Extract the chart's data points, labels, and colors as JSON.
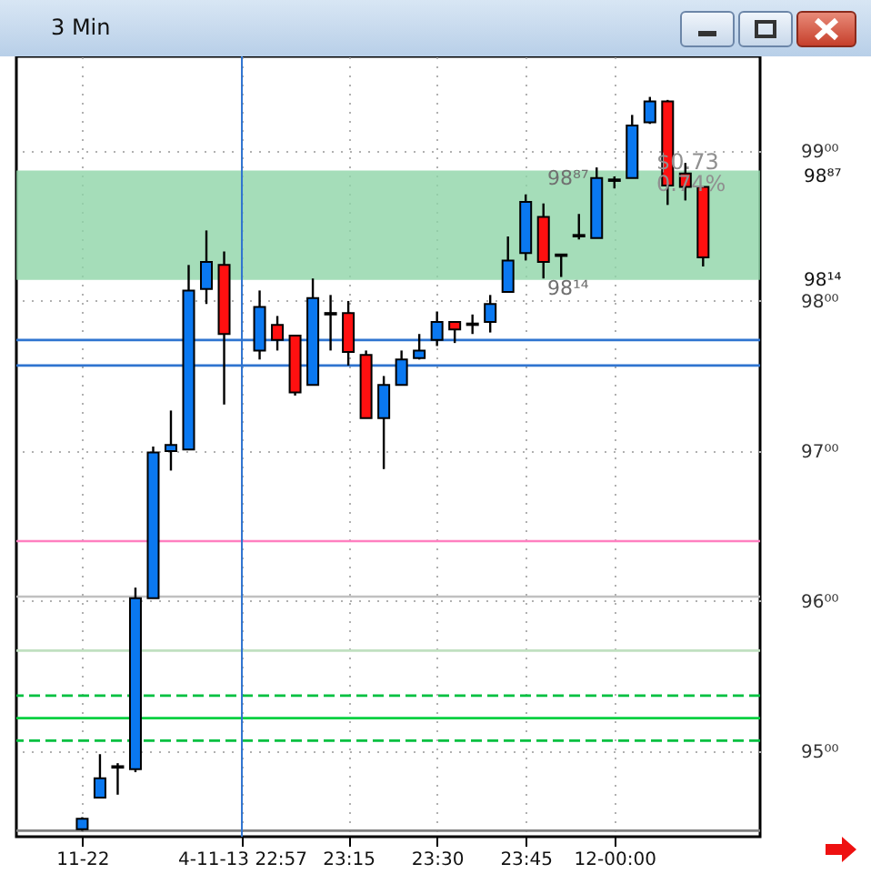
{
  "chart_data": {
    "type": "candlestick",
    "title": "3 Min",
    "categories": [
      "11-22",
      null,
      null,
      null,
      null,
      null,
      null,
      null,
      null,
      "4-11-13 22:57",
      null,
      null,
      null,
      null,
      null,
      "23:15",
      null,
      null,
      null,
      null,
      "23:30",
      null,
      null,
      null,
      null,
      "23:45",
      null,
      null,
      null,
      null,
      "12-00:00",
      null,
      null,
      null,
      null,
      null
    ],
    "ohlc": [
      [
        94.48,
        94.56,
        94.47,
        94.55
      ],
      [
        94.69,
        94.98,
        94.69,
        94.82
      ],
      [
        94.9,
        94.92,
        94.71,
        94.89
      ],
      [
        94.88,
        96.09,
        94.86,
        96.02
      ],
      [
        96.02,
        97.03,
        96.02,
        96.99
      ],
      [
        97.0,
        97.27,
        96.87,
        97.04
      ],
      [
        97.01,
        98.24,
        97.01,
        98.07
      ],
      [
        98.08,
        98.47,
        97.98,
        98.26
      ],
      [
        98.24,
        98.33,
        97.31,
        97.78
      ],
      null,
      [
        97.67,
        98.07,
        97.61,
        97.96
      ],
      [
        97.84,
        97.9,
        97.67,
        97.74
      ],
      [
        97.77,
        97.77,
        97.37,
        97.39
      ],
      [
        97.44,
        98.15,
        97.44,
        98.02
      ],
      [
        97.91,
        98.04,
        97.67,
        97.92
      ],
      [
        97.92,
        98.0,
        97.57,
        97.66
      ],
      [
        97.64,
        97.67,
        97.22,
        97.22
      ],
      [
        97.22,
        97.5,
        96.88,
        97.44
      ],
      [
        97.44,
        97.67,
        97.44,
        97.61
      ],
      [
        97.62,
        97.78,
        97.61,
        97.67
      ],
      [
        97.74,
        97.93,
        97.7,
        97.86
      ],
      [
        97.86,
        97.86,
        97.72,
        97.81
      ],
      [
        97.85,
        97.91,
        97.78,
        97.84
      ],
      [
        97.86,
        98.04,
        97.79,
        97.98
      ],
      [
        98.06,
        98.43,
        98.06,
        98.27
      ],
      [
        98.32,
        98.71,
        98.27,
        98.66
      ],
      [
        98.56,
        98.65,
        98.15,
        98.26
      ],
      [
        98.3,
        98.31,
        98.16,
        98.31
      ],
      [
        98.43,
        98.58,
        98.41,
        98.44
      ],
      [
        98.42,
        98.89,
        98.42,
        98.82
      ],
      [
        98.8,
        98.83,
        98.75,
        98.81
      ],
      [
        98.82,
        99.24,
        98.82,
        99.17
      ],
      [
        99.19,
        99.36,
        99.18,
        99.33
      ],
      [
        99.33,
        99.34,
        98.64,
        98.77
      ],
      [
        98.85,
        98.92,
        98.67,
        98.76
      ],
      [
        98.76,
        98.76,
        98.23,
        98.29
      ]
    ],
    "ylim": [
      94.43,
      99.63
    ],
    "yticks": [
      {
        "value": 95,
        "label": "95⁰⁰"
      },
      {
        "value": 96,
        "label": "96⁰⁰"
      },
      {
        "value": 97,
        "label": "97⁰⁰"
      },
      {
        "value": 98,
        "label": "98⁰⁰"
      },
      {
        "value": 99,
        "label": "99⁰⁰"
      }
    ],
    "grid": true,
    "ref_lines": [
      {
        "axis": "y",
        "value": 97.57,
        "color": "#2f74d0"
      },
      {
        "axis": "y",
        "value": 97.74,
        "color": "#2f74d0"
      },
      {
        "axis": "x",
        "value": "4-11-13 22:57",
        "color": "#2f74d0"
      },
      {
        "axis": "y",
        "value": 96.4,
        "color": "#ff80c0"
      },
      {
        "axis": "y",
        "value": 96.03,
        "color": "#c0c0c0"
      },
      {
        "axis": "y",
        "value": 95.67,
        "color": "#c0e0c0"
      },
      {
        "axis": "y",
        "value": 95.37,
        "color": "#00c040",
        "line_style": "dashed"
      },
      {
        "axis": "y",
        "value": 95.22,
        "color": "#00d040"
      },
      {
        "axis": "y",
        "value": 95.07,
        "color": "#00c040",
        "line_style": "dashed"
      },
      {
        "axis": "y",
        "value": 94.47,
        "color": "#808080"
      }
    ],
    "bands": [
      {
        "axis": "y",
        "from": 98.14,
        "to": 98.87,
        "color": "#8fd4a8"
      }
    ],
    "annotations": [
      {
        "text": "98⁸⁷",
        "y": 98.87
      },
      {
        "text": "98¹⁴",
        "y": 98.14
      },
      "98⁸⁷",
      "98¹⁴",
      "$0.73",
      "0.74%"
    ]
  }
}
